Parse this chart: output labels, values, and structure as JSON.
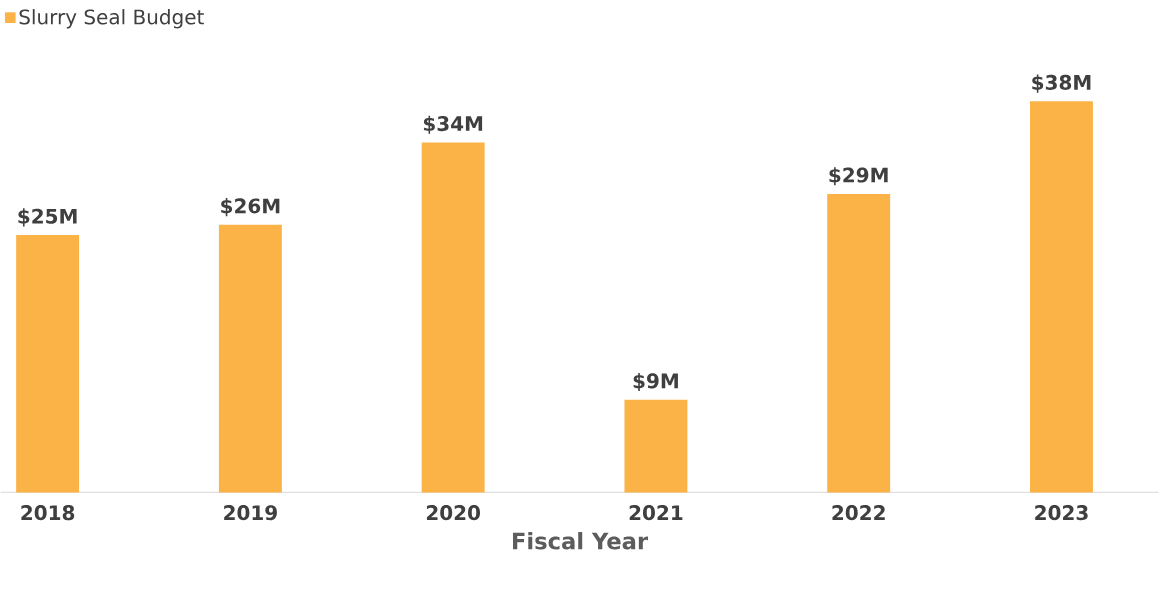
{
  "chart_data": {
    "type": "bar",
    "xlabel": "Fiscal Year",
    "legend": "top left",
    "categories": [
      "2018",
      "2019",
      "2020",
      "2021",
      "2022",
      "2023"
    ],
    "series": [
      {
        "name": "Slurry Seal Budget",
        "color": "#fbb347",
        "values": [
          25,
          26,
          34,
          9,
          29,
          38
        ],
        "value_labels": [
          "$25M",
          "$26M",
          "$34M",
          "$9M",
          "$29M",
          "$38M"
        ]
      }
    ]
  }
}
